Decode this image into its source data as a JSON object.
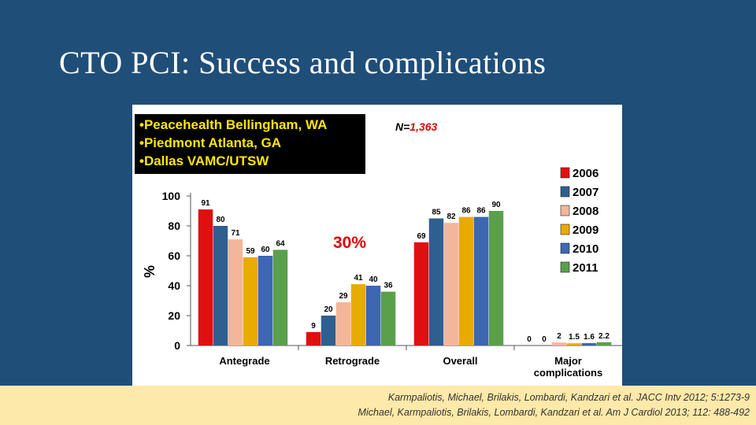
{
  "slide": {
    "title": "CTO PCI: Success and complications"
  },
  "sites": {
    "lines": [
      "•Peacehealth Bellingham, WA",
      "•Piedmont Atlanta, GA",
      "•Dallas VAMC/UTSW"
    ]
  },
  "n_label": {
    "prefix": "N=",
    "value": "1,363"
  },
  "citation": {
    "line1": "Karmpaliotis, Michael, Brilakis, Lombardi, Kandzari et al. JACC Intv 2012; 5:1273-9",
    "line2": "Michael, Karmpaliotis, Brilakis, Lombardi, Kandzari et al. Am J Cardiol 2013; 112: 488-492"
  },
  "chart_data": {
    "type": "bar",
    "ylabel": "%",
    "ylim": [
      0,
      100
    ],
    "yticks": [
      "0",
      "20",
      "40",
      "60",
      "80",
      "100"
    ],
    "categories": [
      "Antegrade",
      "Retrograde",
      "Overall",
      "Major complications"
    ],
    "series": [
      {
        "name": "2006",
        "color": "#e01010",
        "values": [
          91,
          9,
          69,
          0
        ],
        "labels": [
          "91",
          "9",
          "69",
          "0"
        ]
      },
      {
        "name": "2007",
        "color": "#2f5f8f",
        "values": [
          80,
          20,
          85,
          0
        ],
        "labels": [
          "80",
          "20",
          "85",
          "0"
        ]
      },
      {
        "name": "2008",
        "color": "#f4b69a",
        "values": [
          71,
          29,
          82,
          2
        ],
        "labels": [
          "71",
          "29",
          "82",
          "2"
        ]
      },
      {
        "name": "2009",
        "color": "#e8ac00",
        "values": [
          59,
          41,
          86,
          1.5
        ],
        "labels": [
          "59",
          "41",
          "86",
          "1.5"
        ]
      },
      {
        "name": "2010",
        "color": "#3d66b3",
        "values": [
          60,
          40,
          86,
          1.6
        ],
        "labels": [
          "60",
          "40",
          "86",
          "1.6"
        ]
      },
      {
        "name": "2011",
        "color": "#5aa04a",
        "values": [
          64,
          36,
          90,
          2.2
        ],
        "labels": [
          "64",
          "36",
          "90",
          "2.2"
        ]
      }
    ],
    "annotation": "30%",
    "legend": "right",
    "grid": false
  }
}
